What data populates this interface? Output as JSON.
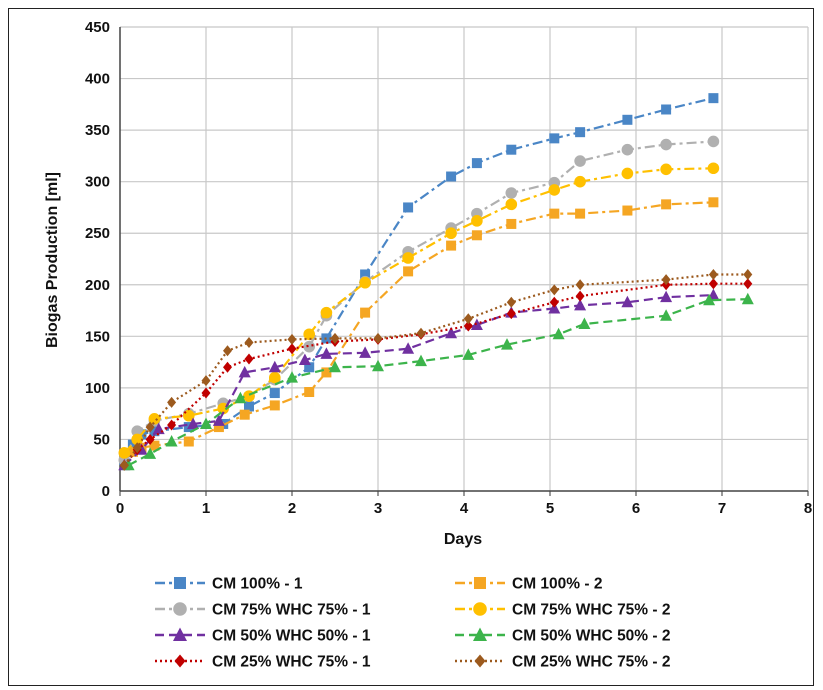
{
  "chart_data": {
    "type": "line",
    "title": "",
    "xlabel": "Days",
    "ylabel": "Biogas Production [ml]",
    "xlim": [
      0,
      8
    ],
    "ylim": [
      0,
      450
    ],
    "x_ticks": [
      "0",
      "1",
      "2",
      "3",
      "4",
      "5",
      "6",
      "7",
      "8"
    ],
    "y_ticks": [
      "0",
      "50",
      "100",
      "150",
      "200",
      "250",
      "300",
      "350",
      "400",
      "450"
    ],
    "grid": true,
    "legend_position": "bottom",
    "series": [
      {
        "name": "CM 100% - 1",
        "color": "#4a86c6",
        "marker": "square",
        "dash": "dashdot",
        "x": [
          0.05,
          0.15,
          0.25,
          0.4,
          0.8,
          1.2,
          1.5,
          1.8,
          2.2,
          2.4,
          2.85,
          3.35,
          3.85,
          4.15,
          4.55,
          5.05,
          5.35,
          5.9,
          6.35,
          6.9
        ],
        "y": [
          30,
          45,
          55,
          58,
          62,
          65,
          82,
          95,
          120,
          148,
          210,
          275,
          305,
          318,
          331,
          342,
          348,
          360,
          370,
          381
        ]
      },
      {
        "name": "CM 100% - 2",
        "color": "#f5a623",
        "marker": "square",
        "dash": "dashdot",
        "x": [
          0.05,
          0.15,
          0.25,
          0.4,
          0.8,
          1.15,
          1.45,
          1.8,
          2.2,
          2.4,
          2.85,
          3.35,
          3.85,
          4.15,
          4.55,
          5.05,
          5.35,
          5.9,
          6.35,
          6.9
        ],
        "y": [
          35,
          38,
          42,
          44,
          48,
          62,
          74,
          83,
          96,
          115,
          173,
          213,
          238,
          248,
          259,
          269,
          269,
          272,
          278,
          280
        ]
      },
      {
        "name": "CM 75% WHC 75% - 1",
        "color": "#b0b0b0",
        "marker": "circle",
        "dash": "dashdot",
        "x": [
          0.05,
          0.2,
          0.4,
          0.8,
          1.2,
          1.5,
          1.8,
          2.2,
          2.4,
          2.85,
          3.35,
          3.85,
          4.15,
          4.55,
          5.05,
          5.35,
          5.9,
          6.35,
          6.9
        ],
        "y": [
          30,
          58,
          68,
          75,
          85,
          92,
          108,
          140,
          170,
          203,
          232,
          255,
          269,
          289,
          299,
          320,
          331,
          336,
          339
        ]
      },
      {
        "name": "CM 75% WHC 75% - 2",
        "color": "#ffc000",
        "marker": "circle",
        "dash": "dashdot",
        "x": [
          0.05,
          0.2,
          0.4,
          0.8,
          1.2,
          1.5,
          1.8,
          2.2,
          2.4,
          2.85,
          3.35,
          3.85,
          4.15,
          4.55,
          5.05,
          5.35,
          5.9,
          6.35,
          6.9
        ],
        "y": [
          37,
          50,
          70,
          73,
          80,
          92,
          110,
          152,
          173,
          202,
          226,
          250,
          262,
          278,
          292,
          300,
          308,
          312,
          313
        ]
      },
      {
        "name": "CM 50% WHC 50% - 1",
        "color": "#7030a0",
        "marker": "triangle",
        "dash": "dash",
        "x": [
          0.05,
          0.25,
          0.45,
          0.85,
          1.15,
          1.45,
          1.8,
          2.15,
          2.4,
          2.85,
          3.35,
          3.85,
          4.15,
          4.55,
          5.05,
          5.35,
          5.9,
          6.35,
          6.9
        ],
        "y": [
          25,
          40,
          60,
          65,
          68,
          115,
          120,
          127,
          133,
          134,
          138,
          153,
          161,
          173,
          177,
          180,
          183,
          188,
          190
        ]
      },
      {
        "name": "CM 50% WHC 50% - 2",
        "color": "#3cb44b",
        "marker": "triangle",
        "dash": "dash",
        "x": [
          0.1,
          0.35,
          0.6,
          1.0,
          1.4,
          2.0,
          2.5,
          3.0,
          3.5,
          4.05,
          4.5,
          5.1,
          5.4,
          6.35,
          6.85,
          7.3
        ],
        "y": [
          25,
          36,
          48,
          65,
          90,
          110,
          120,
          121,
          126,
          132,
          142,
          152,
          162,
          170,
          185,
          186
        ]
      },
      {
        "name": "CM 25% WHC 75% - 1",
        "color": "#c00000",
        "marker": "diamond",
        "dash": "dot",
        "x": [
          0.05,
          0.2,
          0.35,
          0.6,
          1.0,
          1.25,
          1.5,
          2.0,
          2.5,
          3.0,
          3.5,
          4.05,
          4.55,
          5.05,
          5.35,
          6.35,
          6.9,
          7.3
        ],
        "y": [
          25,
          40,
          50,
          64,
          95,
          120,
          128,
          138,
          145,
          147,
          152,
          160,
          172,
          183,
          189,
          200,
          201,
          201
        ]
      },
      {
        "name": "CM 25% WHC 75% - 2",
        "color": "#9c5a1e",
        "marker": "diamond",
        "dash": "dot",
        "x": [
          0.05,
          0.2,
          0.35,
          0.6,
          1.0,
          1.25,
          1.5,
          2.0,
          2.5,
          3.0,
          3.5,
          4.05,
          4.55,
          5.05,
          5.35,
          6.35,
          6.9,
          7.3
        ],
        "y": [
          25,
          42,
          62,
          86,
          107,
          136,
          144,
          147,
          148,
          148,
          153,
          167,
          183,
          195,
          200,
          205,
          210,
          210
        ]
      }
    ]
  }
}
